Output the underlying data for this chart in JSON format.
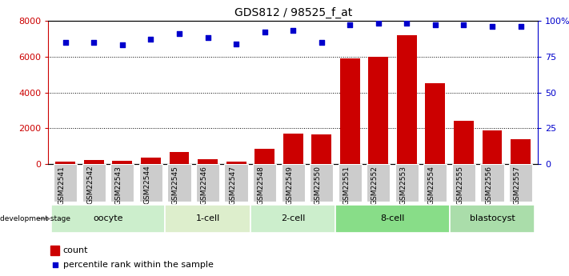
{
  "title": "GDS812 / 98525_f_at",
  "samples": [
    "GSM22541",
    "GSM22542",
    "GSM22543",
    "GSM22544",
    "GSM22545",
    "GSM22546",
    "GSM22547",
    "GSM22548",
    "GSM22549",
    "GSM22550",
    "GSM22551",
    "GSM22552",
    "GSM22553",
    "GSM22554",
    "GSM22555",
    "GSM22556",
    "GSM22557"
  ],
  "counts": [
    150,
    250,
    200,
    350,
    700,
    300,
    150,
    850,
    1700,
    1650,
    5900,
    6000,
    7200,
    4500,
    2400,
    1900,
    1400
  ],
  "percentiles": [
    85,
    85,
    83,
    87,
    91,
    88,
    84,
    92,
    93,
    85,
    97,
    98,
    98,
    97,
    97,
    96,
    96
  ],
  "groups": [
    {
      "label": "oocyte",
      "start": 0,
      "end": 3,
      "color": "#cceecc"
    },
    {
      "label": "1-cell",
      "start": 4,
      "end": 6,
      "color": "#ddeecc"
    },
    {
      "label": "2-cell",
      "start": 7,
      "end": 9,
      "color": "#cceecc"
    },
    {
      "label": "8-cell",
      "start": 10,
      "end": 13,
      "color": "#88dd88"
    },
    {
      "label": "blastocyst",
      "start": 14,
      "end": 16,
      "color": "#aaddaa"
    }
  ],
  "bar_color": "#cc0000",
  "dot_color": "#0000cc",
  "left_ylim": [
    0,
    8000
  ],
  "right_ylim": [
    0,
    100
  ],
  "left_yticks": [
    0,
    2000,
    4000,
    6000,
    8000
  ],
  "right_yticks": [
    0,
    25,
    50,
    75,
    100
  ],
  "right_yticklabels": [
    "0",
    "25",
    "50",
    "75",
    "100%"
  ],
  "grid_values": [
    2000,
    4000,
    6000,
    8000
  ],
  "dev_stage_label": "development stage",
  "legend_count_label": "count",
  "legend_pct_label": "percentile rank within the sample",
  "sample_col_color": "#cccccc",
  "fig_width": 7.11,
  "fig_height": 3.45
}
